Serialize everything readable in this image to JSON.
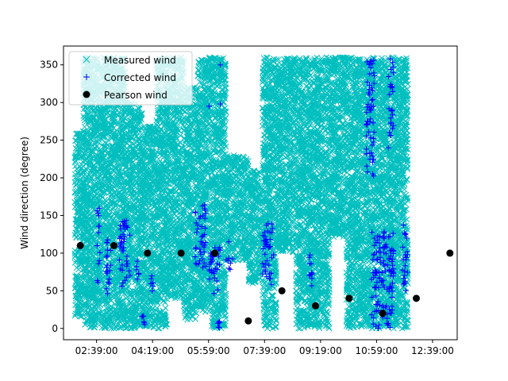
{
  "chart_data": {
    "type": "scatter",
    "ylabel": "Wind direction (degree)",
    "ylim": [
      -15,
      375
    ],
    "xlim": [
      "01:40:00",
      "13:23:00"
    ],
    "x_ticks": [
      "02:39:00",
      "04:19:00",
      "05:59:00",
      "07:39:00",
      "09:19:00",
      "10:59:00",
      "12:39:00"
    ],
    "y_ticks": [
      0,
      50,
      100,
      150,
      200,
      250,
      300,
      350
    ],
    "grid": false,
    "legend_position": "upper-left",
    "series": [
      {
        "name": "Measured wind",
        "marker": "x",
        "color": "#00bfbf",
        "bands": [
          {
            "x0": "02:00:00",
            "x1": "02:15:00",
            "y0": 15,
            "y1": 260
          },
          {
            "x0": "02:15:00",
            "x1": "03:30:00",
            "y0": 0,
            "y1": 360
          },
          {
            "x0": "03:30:00",
            "x1": "04:00:00",
            "y0": 0,
            "y1": 300
          },
          {
            "x0": "04:00:00",
            "x1": "04:25:00",
            "y0": 0,
            "y1": 270
          },
          {
            "x0": "04:25:00",
            "x1": "04:45:00",
            "y0": 0,
            "y1": 360
          },
          {
            "x0": "04:45:00",
            "x1": "05:15:00",
            "y0": 40,
            "y1": 360
          },
          {
            "x0": "05:15:00",
            "x1": "05:40:00",
            "y0": 10,
            "y1": 320
          },
          {
            "x0": "05:40:00",
            "x1": "06:05:00",
            "y0": 20,
            "y1": 360
          },
          {
            "x0": "06:05:00",
            "x1": "06:30:00",
            "y0": 0,
            "y1": 360
          },
          {
            "x0": "06:30:00",
            "x1": "07:10:00",
            "y0": 90,
            "y1": 230
          },
          {
            "x0": "07:10:00",
            "x1": "07:35:00",
            "y0": 60,
            "y1": 210
          },
          {
            "x0": "07:35:00",
            "x1": "08:00:00",
            "y0": 0,
            "y1": 360
          },
          {
            "x0": "08:00:00",
            "x1": "08:35:00",
            "y0": 100,
            "y1": 360
          },
          {
            "x0": "08:35:00",
            "x1": "09:00:00",
            "y0": 0,
            "y1": 360
          },
          {
            "x0": "09:00:00",
            "x1": "09:35:00",
            "y0": 0,
            "y1": 360
          },
          {
            "x0": "09:35:00",
            "x1": "10:05:00",
            "y0": 120,
            "y1": 360
          },
          {
            "x0": "10:05:00",
            "x1": "10:40:00",
            "y0": 0,
            "y1": 360
          },
          {
            "x0": "10:40:00",
            "x1": "11:15:00",
            "y0": 0,
            "y1": 360
          },
          {
            "x0": "11:15:00",
            "x1": "11:55:00",
            "y0": 0,
            "y1": 360
          }
        ]
      },
      {
        "name": "Corrected wind",
        "marker": "+",
        "color": "#0000ff",
        "bands": [
          {
            "x0": "02:40:00",
            "x1": "02:45:00",
            "y0": 60,
            "y1": 170
          },
          {
            "x0": "02:55:00",
            "x1": "03:05:00",
            "y0": 40,
            "y1": 120
          },
          {
            "x0": "03:20:00",
            "x1": "03:40:00",
            "y0": 55,
            "y1": 145
          },
          {
            "x0": "03:50:00",
            "x1": "03:55:00",
            "y0": 60,
            "y1": 95
          },
          {
            "x0": "04:00:00",
            "x1": "04:05:00",
            "y0": 0,
            "y1": 20
          },
          {
            "x0": "04:15:00",
            "x1": "04:20:00",
            "y0": 45,
            "y1": 70
          },
          {
            "x0": "05:35:00",
            "x1": "05:55:00",
            "y0": 80,
            "y1": 165
          },
          {
            "x0": "06:00:00",
            "x1": "06:20:00",
            "y0": 45,
            "y1": 110
          },
          {
            "x0": "06:15:00",
            "x1": "06:20:00",
            "y0": 0,
            "y1": 10
          },
          {
            "x0": "06:30:00",
            "x1": "06:45:00",
            "y0": 75,
            "y1": 95
          },
          {
            "x0": "07:35:00",
            "x1": "07:55:00",
            "y0": 55,
            "y1": 140
          },
          {
            "x0": "08:55:00",
            "x1": "09:05:00",
            "y0": 55,
            "y1": 100
          },
          {
            "x0": "10:40:00",
            "x1": "10:55:00",
            "y0": 200,
            "y1": 360
          },
          {
            "x0": "10:50:00",
            "x1": "11:30:00",
            "y0": 0,
            "y1": 130
          },
          {
            "x0": "11:20:00",
            "x1": "11:30:00",
            "y0": 250,
            "y1": 360
          },
          {
            "x0": "11:45:00",
            "x1": "11:55:00",
            "y0": 40,
            "y1": 140
          }
        ],
        "points": [
          {
            "x": "06:00:00",
            "y": 295
          },
          {
            "x": "06:20:00",
            "y": 350
          },
          {
            "x": "06:20:00",
            "y": 298
          },
          {
            "x": "06:35:00",
            "y": 115
          },
          {
            "x": "11:20:00",
            "y": 240
          }
        ]
      },
      {
        "name": "Pearson wind",
        "marker": "o",
        "color": "#000000",
        "points": [
          {
            "x": "02:10:00",
            "y": 110
          },
          {
            "x": "03:10:00",
            "y": 110
          },
          {
            "x": "04:10:00",
            "y": 100
          },
          {
            "x": "05:10:00",
            "y": 100
          },
          {
            "x": "06:10:00",
            "y": 100
          },
          {
            "x": "07:10:00",
            "y": 10
          },
          {
            "x": "08:10:00",
            "y": 50
          },
          {
            "x": "09:10:00",
            "y": 30
          },
          {
            "x": "10:10:00",
            "y": 40
          },
          {
            "x": "11:10:00",
            "y": 20
          },
          {
            "x": "12:10:00",
            "y": 40
          },
          {
            "x": "13:10:00",
            "y": 100
          }
        ]
      }
    ]
  }
}
